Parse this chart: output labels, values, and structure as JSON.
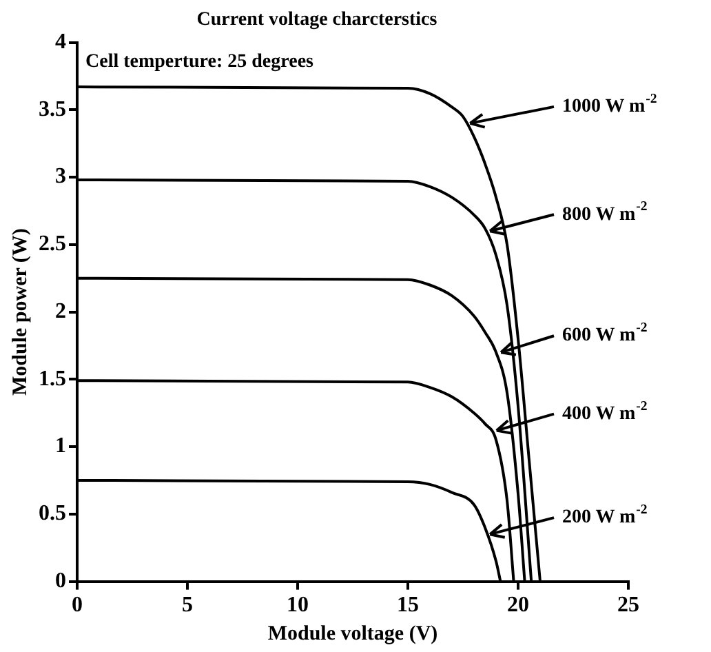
{
  "chart_data": {
    "type": "line",
    "title": "Current voltage charcterstics",
    "xlabel": "Module voltage (V)",
    "ylabel": "Module power (W)",
    "xlim": [
      0,
      25
    ],
    "xticks": [
      0,
      5,
      10,
      15,
      20,
      25
    ],
    "ylim": [
      0,
      4
    ],
    "yticks": [
      0,
      0.5,
      1,
      1.5,
      2,
      2.5,
      3,
      3.5,
      4
    ],
    "grid": false,
    "legend": false,
    "marker": "none",
    "line_style": "solid",
    "series": [
      {
        "color": "#000000",
        "x": [
          0,
          15,
          16,
          17,
          17.5,
          18,
          18.5,
          19,
          19.5,
          20,
          20.5,
          21
        ],
        "values": [
          3.67,
          3.66,
          3.62,
          3.52,
          3.45,
          3.3,
          3.1,
          2.85,
          2.5,
          1.8,
          0.9,
          0
        ]
      },
      {
        "color": "#000000",
        "x": [
          0,
          15,
          16,
          17,
          18,
          18.5,
          19,
          19.5,
          20,
          20.6
        ],
        "values": [
          2.98,
          2.97,
          2.93,
          2.85,
          2.72,
          2.62,
          2.42,
          2.05,
          1.3,
          0
        ]
      },
      {
        "color": "#000000",
        "x": [
          0,
          15,
          16,
          17,
          18,
          18.5,
          19,
          19.5,
          20,
          20.3
        ],
        "values": [
          2.25,
          2.24,
          2.2,
          2.12,
          1.97,
          1.85,
          1.7,
          1.4,
          0.65,
          0
        ]
      },
      {
        "color": "#000000",
        "x": [
          0,
          15,
          16,
          17,
          18,
          18.5,
          19,
          19.5,
          19.8
        ],
        "values": [
          1.49,
          1.48,
          1.44,
          1.37,
          1.25,
          1.17,
          1.05,
          0.6,
          0
        ]
      },
      {
        "color": "#000000",
        "x": [
          0,
          15,
          16,
          17,
          18,
          18.5,
          19,
          19.2
        ],
        "values": [
          0.75,
          0.74,
          0.72,
          0.66,
          0.57,
          0.4,
          0.15,
          0
        ]
      }
    ],
    "annotations": [
      "Cell temperture: 25 degrees",
      {
        "text": "1000 W m$^{-2}$",
        "x": 17.7,
        "y": 3.4
      },
      {
        "text": "800 W m$^{-2}$",
        "x": 18.6,
        "y": 2.6
      },
      {
        "text": "600 W m$^{-2}$",
        "x": 19.1,
        "y": 1.7
      },
      {
        "text": "400 W m$^{-2}$",
        "x": 18.9,
        "y": 1.12
      },
      {
        "text": "200 W m$^{-2}$",
        "x": 18.6,
        "y": 0.35
      }
    ]
  }
}
